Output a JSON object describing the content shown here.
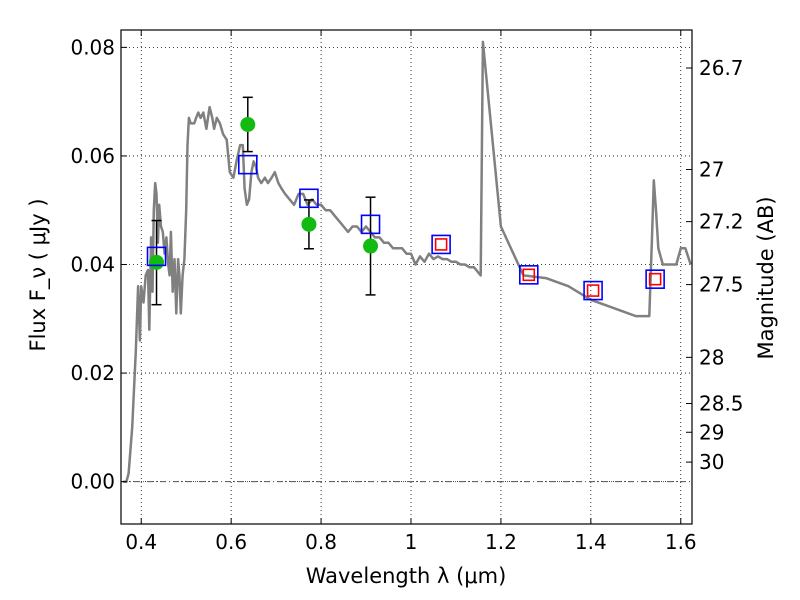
{
  "chart_data": {
    "type": "scatter",
    "xlabel": "Wavelength  λ (μm)",
    "ylabel": "Flux  F_ν  ( μJy )",
    "y2label": "Magnitude (AB)",
    "xlim": [
      0.355,
      1.625
    ],
    "ylim": [
      -0.0078,
      0.0832
    ],
    "grid": true,
    "x_ticks": [
      {
        "value": 0.4,
        "label": "0.4"
      },
      {
        "value": 0.6,
        "label": "0.6"
      },
      {
        "value": 0.8,
        "label": "0.8"
      },
      {
        "value": 1.0,
        "label": "1"
      },
      {
        "value": 1.2,
        "label": "1.2"
      },
      {
        "value": 1.4,
        "label": "1.4"
      },
      {
        "value": 1.6,
        "label": "1.6"
      }
    ],
    "y_ticks": [
      {
        "value": 0.0,
        "label": "0.00"
      },
      {
        "value": 0.02,
        "label": "0.02"
      },
      {
        "value": 0.04,
        "label": "0.04"
      },
      {
        "value": 0.06,
        "label": "0.06"
      },
      {
        "value": 0.08,
        "label": "0.08"
      }
    ],
    "magnitude_ticks": [
      {
        "label": "26.7",
        "flux": 0.0762
      },
      {
        "label": "27",
        "flux": 0.0575
      },
      {
        "label": "27.2",
        "flux": 0.0479
      },
      {
        "label": "27.5",
        "flux": 0.0363
      },
      {
        "label": "28",
        "flux": 0.0229
      },
      {
        "label": "28.5",
        "flux": 0.0144
      },
      {
        "label": "29",
        "flux": 0.0091
      },
      {
        "label": "30",
        "flux": 0.0036
      }
    ],
    "series": [
      {
        "kind": "line",
        "color": "#808080",
        "x": [
          0.36,
          0.367,
          0.372,
          0.38,
          0.388,
          0.393,
          0.397,
          0.4,
          0.405,
          0.41,
          0.415,
          0.418,
          0.422,
          0.425,
          0.428,
          0.431,
          0.434,
          0.437,
          0.44,
          0.444,
          0.448,
          0.452,
          0.456,
          0.46,
          0.463,
          0.466,
          0.47,
          0.474,
          0.478,
          0.482,
          0.485,
          0.488,
          0.492,
          0.496,
          0.5,
          0.503,
          0.506,
          0.51,
          0.514,
          0.518,
          0.522,
          0.527,
          0.532,
          0.538,
          0.545,
          0.552,
          0.558,
          0.562,
          0.568,
          0.575,
          0.582,
          0.59,
          0.597,
          0.605,
          0.612,
          0.62,
          0.626,
          0.63,
          0.635,
          0.64,
          0.645,
          0.65,
          0.655,
          0.66,
          0.667,
          0.675,
          0.682,
          0.69,
          0.697,
          0.705,
          0.712,
          0.72,
          0.73,
          0.74,
          0.75,
          0.76,
          0.77,
          0.78,
          0.79,
          0.8,
          0.81,
          0.82,
          0.83,
          0.84,
          0.85,
          0.86,
          0.87,
          0.88,
          0.89,
          0.9,
          0.91,
          0.92,
          0.93,
          0.94,
          0.95,
          0.96,
          0.97,
          0.98,
          0.99,
          1.0,
          1.01,
          1.02,
          1.03,
          1.04,
          1.05,
          1.06,
          1.07,
          1.08,
          1.09,
          1.1,
          1.11,
          1.12,
          1.13,
          1.14,
          1.145,
          1.15,
          1.155,
          1.16,
          1.2,
          1.25,
          1.3,
          1.35,
          1.4,
          1.45,
          1.5,
          1.52,
          1.53,
          1.536,
          1.54,
          1.545,
          1.55,
          1.56,
          1.57,
          1.58,
          1.59,
          1.6,
          1.61,
          1.622
        ],
        "y": [
          0.0,
          0.0,
          0.0015,
          0.01,
          0.024,
          0.036,
          0.026,
          0.036,
          0.033,
          0.038,
          0.039,
          0.028,
          0.045,
          0.035,
          0.05,
          0.055,
          0.053,
          0.044,
          0.051,
          0.047,
          0.046,
          0.042,
          0.045,
          0.04,
          0.038,
          0.046,
          0.035,
          0.041,
          0.031,
          0.041,
          0.038,
          0.031,
          0.038,
          0.041,
          0.05,
          0.062,
          0.067,
          0.066,
          0.066,
          0.066,
          0.067,
          0.068,
          0.067,
          0.068,
          0.065,
          0.069,
          0.067,
          0.065,
          0.067,
          0.066,
          0.064,
          0.063,
          0.057,
          0.056,
          0.059,
          0.062,
          0.062,
          0.054,
          0.051,
          0.052,
          0.057,
          0.059,
          0.058,
          0.056,
          0.055,
          0.056,
          0.055,
          0.056,
          0.057,
          0.055,
          0.054,
          0.053,
          0.052,
          0.051,
          0.053,
          0.053,
          0.051,
          0.052,
          0.051,
          0.051,
          0.05,
          0.05,
          0.049,
          0.048,
          0.047,
          0.046,
          0.047,
          0.047,
          0.046,
          0.047,
          0.046,
          0.045,
          0.045,
          0.044,
          0.044,
          0.043,
          0.043,
          0.043,
          0.042,
          0.042,
          0.04,
          0.0415,
          0.0405,
          0.042,
          0.041,
          0.0415,
          0.041,
          0.041,
          0.0405,
          0.0405,
          0.04,
          0.04,
          0.0395,
          0.0395,
          0.039,
          0.0385,
          0.038,
          0.081,
          0.047,
          0.038,
          0.0375,
          0.036,
          0.0335,
          0.032,
          0.0305,
          0.0305,
          0.0305,
          0.045,
          0.0555,
          0.05,
          0.043,
          0.04,
          0.04,
          0.04,
          0.04,
          0.043,
          0.043,
          0.04
        ]
      },
      {
        "kind": "points",
        "name": "",
        "marker": "circle",
        "color": "#12bb12",
        "points": [
          {
            "x": 0.434,
            "y": 0.0404,
            "yerr_low": 0.0078,
            "yerr_high": 0.0077
          },
          {
            "x": 0.637,
            "y": 0.0658,
            "yerr_low": 0.005,
            "yerr_high": 0.005
          },
          {
            "x": 0.773,
            "y": 0.0474,
            "yerr_low": 0.0045,
            "yerr_high": 0.0045
          },
          {
            "x": 0.91,
            "y": 0.0434,
            "yerr_low": 0.009,
            "yerr_high": 0.009
          }
        ]
      },
      {
        "kind": "points",
        "name": "",
        "marker": "square-open",
        "color": "#0000ff",
        "size": 18,
        "x": [
          0.434,
          0.637,
          0.773,
          0.91,
          1.067,
          1.262,
          1.405,
          1.543
        ],
        "y": [
          0.0415,
          0.0584,
          0.0522,
          0.0474,
          0.0437,
          0.0381,
          0.0352,
          0.0373
        ]
      },
      {
        "kind": "points",
        "name": "",
        "marker": "square-open",
        "color": "#ff0000",
        "size": 11,
        "x": [
          1.067,
          1.262,
          1.405,
          1.543
        ],
        "y": [
          0.0437,
          0.0381,
          0.0352,
          0.0373
        ]
      }
    ]
  }
}
